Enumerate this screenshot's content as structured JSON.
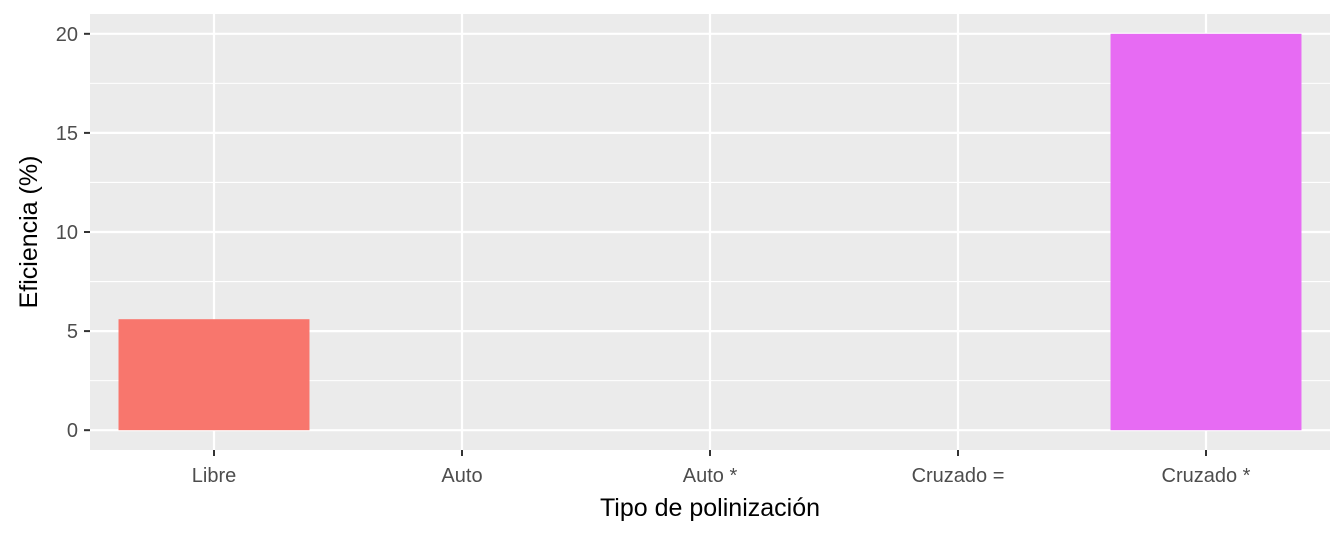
{
  "chart_data": {
    "type": "bar",
    "title": "",
    "xlabel": "Tipo de polinización",
    "ylabel": "Eficiencia (%)",
    "categories": [
      "Libre",
      "Auto",
      "Auto *",
      "Cruzado =",
      "Cruzado *"
    ],
    "values": [
      5.6,
      0,
      0,
      0,
      20
    ],
    "colors": [
      "#F8766D",
      "#A3A500",
      "#00BF7D",
      "#00B0F6",
      "#E76BF3"
    ],
    "ylim": [
      -1,
      21
    ],
    "yticks": [
      0,
      5,
      10,
      15,
      20
    ],
    "grid": true,
    "legend": "none",
    "panel_background": "#EBEBEB",
    "gridline_color": "#FFFFFF"
  }
}
